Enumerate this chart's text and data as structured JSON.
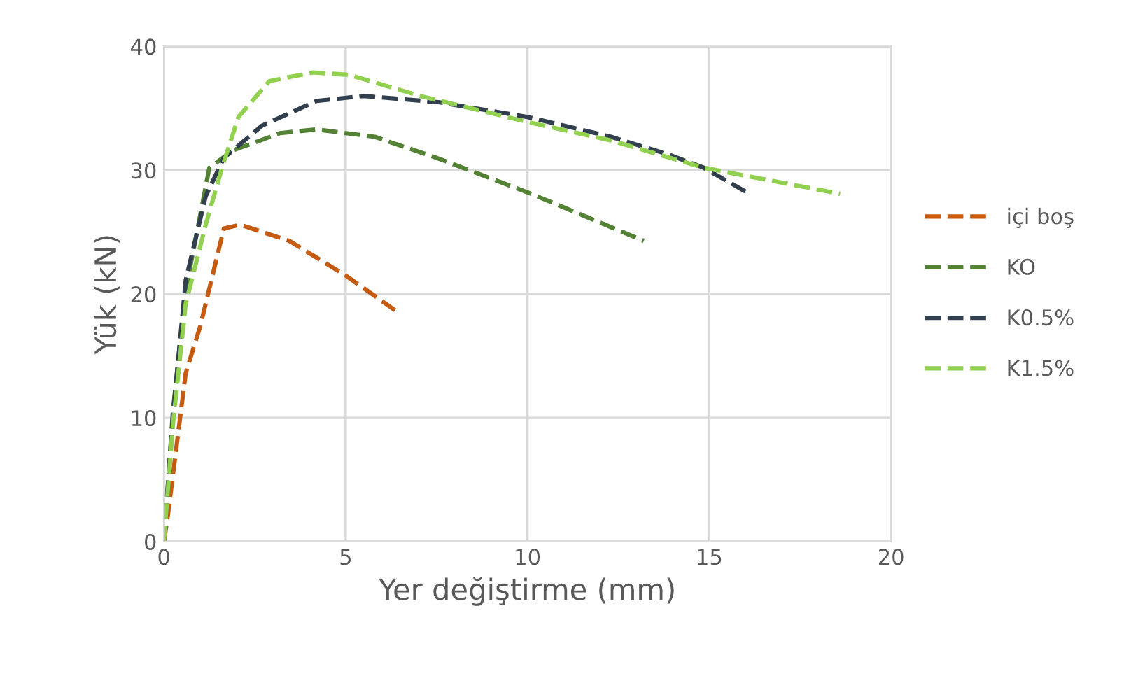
{
  "chart_data": {
    "type": "line",
    "xlabel": "Yer değiştirme (mm)",
    "ylabel": "Yük (kN)",
    "xlim": [
      0,
      20
    ],
    "ylim": [
      0,
      40
    ],
    "xticks": [
      0,
      5,
      10,
      15,
      20
    ],
    "yticks": [
      0,
      10,
      20,
      30,
      40
    ],
    "grid": true,
    "legend": "right",
    "line_style": "dashed",
    "marker": "none",
    "series": [
      {
        "name": "içi boş",
        "color": "#c55a11",
        "x": [
          0,
          0.1,
          0.6,
          1.0,
          1.65,
          2.1,
          3.45,
          5.0,
          6.5
        ],
        "values": [
          0,
          1.9,
          13.6,
          17.4,
          25.3,
          25.6,
          24.3,
          21.5,
          18.4
        ]
      },
      {
        "name": "KO",
        "color": "#548235",
        "x": [
          0,
          0.25,
          0.6,
          1.25,
          1.9,
          3.2,
          4.2,
          5.8,
          7.5,
          10.1,
          13.2
        ],
        "values": [
          0,
          10.6,
          20.3,
          30.2,
          31.6,
          33.0,
          33.3,
          32.7,
          31.0,
          28.1,
          24.3
        ]
      },
      {
        "name": "K0.5%",
        "color": "#323f4f",
        "x": [
          0,
          0.25,
          0.6,
          1.15,
          1.65,
          2.7,
          4.2,
          5.5,
          7.55,
          10,
          12.3,
          13.85,
          14.85,
          16.1
        ],
        "values": [
          0,
          10.2,
          21.1,
          27.9,
          31.0,
          33.6,
          35.6,
          36.0,
          35.5,
          34.3,
          32.7,
          31.3,
          30.2,
          28.1
        ]
      },
      {
        "name": "K1.5%",
        "color": "#92d050",
        "x": [
          0,
          0.25,
          0.6,
          1.15,
          1.6,
          2.05,
          2.9,
          4.1,
          5.1,
          7.05,
          10,
          12.3,
          14.85,
          18.6
        ],
        "values": [
          0,
          9.5,
          19.2,
          25.6,
          30.2,
          34.3,
          37.2,
          37.9,
          37.7,
          36.0,
          33.9,
          32.4,
          30.2,
          28.1
        ]
      }
    ]
  }
}
